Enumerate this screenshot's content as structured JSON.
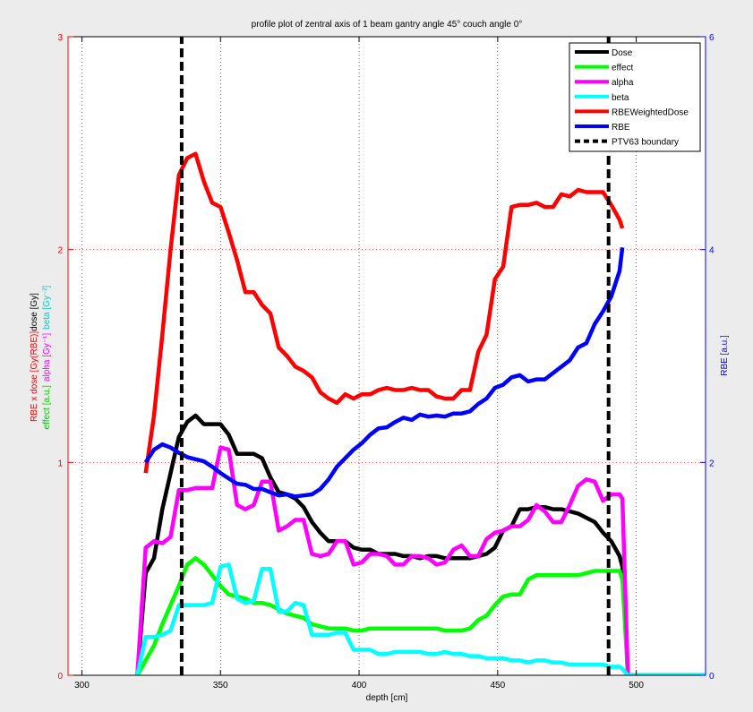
{
  "chart_data": {
    "type": "line",
    "title": "profile plot of zentral axis of 1 beam gantry angle 45° couch angle 0°",
    "xlabel": "depth [cm]",
    "ylabel_left_parts": [
      {
        "text": "RBE x dose [Gy(RBE)]",
        "color": "#ff0000"
      },
      {
        "text": "dose [Gy]",
        "color": "#000000"
      }
    ],
    "ylabel_left2_parts": [
      {
        "text": "effect [a.u.]",
        "color": "#00cc00"
      },
      {
        "text": "alpha [Gy⁻¹]",
        "color": "#ff00ff"
      },
      {
        "text": "beta [Gy⁻²]",
        "color": "#00cccc"
      }
    ],
    "ylabel_right": "RBE [a.u.]",
    "xlim": [
      295,
      525
    ],
    "ylim_left": [
      0,
      3
    ],
    "ylim_right": [
      0,
      6
    ],
    "x_ticks": [
      "300",
      "350",
      "400",
      "450",
      "500"
    ],
    "y_left_ticks": [
      "0",
      "1",
      "2",
      "3"
    ],
    "y_right_ticks": [
      "0",
      "2",
      "4",
      "6"
    ],
    "grid": true,
    "legend_position": "top-right",
    "series": [
      {
        "name": "Dose",
        "color": "#000000",
        "axis": "left",
        "dashed": false,
        "x": [
          320,
          323,
          326,
          329,
          332,
          335,
          338,
          341,
          344,
          347,
          350,
          353,
          356,
          359,
          362,
          365,
          368,
          371,
          374,
          377,
          380,
          383,
          386,
          389,
          392,
          395,
          398,
          401,
          404,
          407,
          410,
          413,
          416,
          419,
          422,
          425,
          428,
          431,
          434,
          437,
          440,
          443,
          446,
          449,
          452,
          455,
          458,
          461,
          464,
          467,
          470,
          473,
          476,
          479,
          482,
          485,
          488,
          491,
          494,
          495,
          497,
          500,
          525
        ],
        "y": [
          0.0,
          0.48,
          0.55,
          0.78,
          0.95,
          1.12,
          1.19,
          1.22,
          1.18,
          1.18,
          1.18,
          1.13,
          1.04,
          1.04,
          1.04,
          1.02,
          0.93,
          0.86,
          0.85,
          0.83,
          0.79,
          0.72,
          0.67,
          0.63,
          0.63,
          0.63,
          0.6,
          0.59,
          0.59,
          0.57,
          0.57,
          0.57,
          0.56,
          0.56,
          0.55,
          0.56,
          0.56,
          0.55,
          0.55,
          0.55,
          0.55,
          0.56,
          0.57,
          0.6,
          0.68,
          0.7,
          0.78,
          0.78,
          0.79,
          0.79,
          0.78,
          0.78,
          0.77,
          0.76,
          0.74,
          0.72,
          0.67,
          0.63,
          0.56,
          0.51,
          0.0,
          0.0,
          0.0
        ]
      },
      {
        "name": "effect",
        "color": "#00ff00",
        "axis": "left",
        "dashed": false,
        "x": [
          320,
          323,
          326,
          329,
          332,
          335,
          338,
          341,
          344,
          347,
          350,
          353,
          356,
          359,
          362,
          365,
          368,
          371,
          374,
          377,
          380,
          383,
          386,
          389,
          392,
          395,
          398,
          401,
          404,
          407,
          410,
          413,
          416,
          419,
          422,
          425,
          428,
          431,
          434,
          437,
          440,
          443,
          446,
          449,
          452,
          455,
          458,
          461,
          464,
          467,
          470,
          473,
          476,
          479,
          482,
          485,
          488,
          491,
          494,
          495,
          497,
          500,
          525
        ],
        "y": [
          0.0,
          0.07,
          0.14,
          0.24,
          0.33,
          0.42,
          0.52,
          0.55,
          0.52,
          0.47,
          0.42,
          0.38,
          0.37,
          0.36,
          0.34,
          0.34,
          0.33,
          0.31,
          0.29,
          0.28,
          0.27,
          0.24,
          0.23,
          0.22,
          0.22,
          0.22,
          0.21,
          0.21,
          0.22,
          0.22,
          0.22,
          0.22,
          0.22,
          0.22,
          0.22,
          0.22,
          0.22,
          0.21,
          0.21,
          0.21,
          0.22,
          0.26,
          0.28,
          0.33,
          0.37,
          0.38,
          0.38,
          0.45,
          0.47,
          0.47,
          0.47,
          0.47,
          0.47,
          0.47,
          0.48,
          0.49,
          0.49,
          0.49,
          0.49,
          0.45,
          0.0,
          0.0,
          0.0
        ]
      },
      {
        "name": "alpha",
        "color": "#ff00ff",
        "axis": "left",
        "dashed": false,
        "x": [
          320,
          323,
          326,
          329,
          332,
          335,
          338,
          341,
          344,
          347,
          350,
          353,
          356,
          359,
          362,
          365,
          368,
          371,
          374,
          377,
          380,
          383,
          386,
          389,
          392,
          395,
          398,
          401,
          404,
          407,
          410,
          413,
          416,
          419,
          422,
          425,
          428,
          431,
          434,
          437,
          440,
          443,
          446,
          449,
          452,
          455,
          458,
          461,
          464,
          467,
          470,
          473,
          476,
          479,
          482,
          485,
          488,
          491,
          494,
          495,
          497,
          500,
          525
        ],
        "y": [
          0.0,
          0.6,
          0.63,
          0.62,
          0.65,
          0.87,
          0.87,
          0.88,
          0.88,
          0.88,
          1.07,
          1.06,
          0.8,
          0.78,
          0.8,
          0.91,
          0.91,
          0.68,
          0.7,
          0.73,
          0.73,
          0.57,
          0.56,
          0.57,
          0.63,
          0.63,
          0.52,
          0.53,
          0.57,
          0.57,
          0.56,
          0.52,
          0.52,
          0.56,
          0.56,
          0.55,
          0.52,
          0.53,
          0.59,
          0.61,
          0.56,
          0.56,
          0.64,
          0.67,
          0.68,
          0.7,
          0.7,
          0.73,
          0.8,
          0.77,
          0.72,
          0.72,
          0.8,
          0.89,
          0.92,
          0.91,
          0.82,
          0.85,
          0.85,
          0.83,
          0.0,
          0.0,
          0.0
        ]
      },
      {
        "name": "beta",
        "color": "#00ffff",
        "axis": "left",
        "dashed": false,
        "x": [
          320,
          323,
          326,
          329,
          332,
          335,
          338,
          341,
          344,
          347,
          350,
          353,
          356,
          359,
          362,
          365,
          368,
          371,
          374,
          377,
          380,
          383,
          386,
          389,
          392,
          395,
          398,
          401,
          404,
          407,
          410,
          413,
          416,
          419,
          422,
          425,
          428,
          431,
          434,
          437,
          440,
          443,
          446,
          449,
          452,
          455,
          458,
          461,
          464,
          467,
          470,
          473,
          476,
          479,
          482,
          485,
          488,
          491,
          494,
          495,
          497,
          500,
          525
        ],
        "y": [
          0.0,
          0.18,
          0.18,
          0.19,
          0.21,
          0.33,
          0.33,
          0.33,
          0.33,
          0.34,
          0.51,
          0.52,
          0.36,
          0.34,
          0.35,
          0.5,
          0.5,
          0.3,
          0.3,
          0.34,
          0.33,
          0.19,
          0.19,
          0.19,
          0.2,
          0.2,
          0.12,
          0.12,
          0.12,
          0.1,
          0.1,
          0.11,
          0.11,
          0.11,
          0.11,
          0.1,
          0.1,
          0.11,
          0.1,
          0.1,
          0.09,
          0.09,
          0.08,
          0.08,
          0.08,
          0.07,
          0.07,
          0.06,
          0.07,
          0.07,
          0.06,
          0.06,
          0.05,
          0.05,
          0.05,
          0.05,
          0.05,
          0.04,
          0.04,
          0.03,
          0.0,
          0.0,
          0.0
        ]
      },
      {
        "name": "RBEWeightedDose",
        "color": "#ff0000",
        "axis": "left",
        "dashed": false,
        "x": [
          323,
          326,
          329,
          332,
          335,
          338,
          341,
          344,
          347,
          350,
          353,
          356,
          359,
          362,
          365,
          368,
          371,
          374,
          377,
          380,
          383,
          386,
          389,
          392,
          395,
          398,
          401,
          404,
          407,
          410,
          413,
          416,
          419,
          422,
          425,
          428,
          431,
          434,
          437,
          440,
          443,
          446,
          449,
          452,
          455,
          458,
          461,
          464,
          467,
          470,
          473,
          476,
          479,
          482,
          485,
          488,
          491,
          494,
          495
        ],
        "y": [
          0.95,
          1.22,
          1.6,
          2.0,
          2.35,
          2.43,
          2.45,
          2.32,
          2.22,
          2.2,
          2.08,
          1.95,
          1.8,
          1.8,
          1.74,
          1.7,
          1.54,
          1.5,
          1.45,
          1.43,
          1.4,
          1.33,
          1.3,
          1.28,
          1.32,
          1.3,
          1.32,
          1.32,
          1.34,
          1.35,
          1.34,
          1.34,
          1.35,
          1.34,
          1.34,
          1.31,
          1.3,
          1.3,
          1.34,
          1.34,
          1.52,
          1.6,
          1.86,
          1.92,
          2.2,
          2.21,
          2.21,
          2.22,
          2.2,
          2.2,
          2.26,
          2.25,
          2.28,
          2.27,
          2.27,
          2.27,
          2.21,
          2.14,
          2.1
        ]
      },
      {
        "name": "RBE",
        "color": "#0000ff",
        "axis": "right",
        "dashed": false,
        "x": [
          323,
          326,
          329,
          332,
          335,
          338,
          341,
          344,
          347,
          350,
          353,
          356,
          359,
          362,
          365,
          368,
          371,
          374,
          377,
          380,
          383,
          386,
          389,
          392,
          395,
          398,
          401,
          404,
          407,
          410,
          413,
          416,
          419,
          422,
          425,
          428,
          431,
          434,
          437,
          440,
          443,
          446,
          449,
          452,
          455,
          458,
          461,
          464,
          467,
          470,
          473,
          476,
          479,
          482,
          485,
          488,
          491,
          494,
          495
        ],
        "y": [
          2.0,
          2.12,
          2.17,
          2.14,
          2.09,
          2.05,
          2.03,
          2.01,
          1.96,
          1.9,
          1.85,
          1.8,
          1.79,
          1.75,
          1.75,
          1.72,
          1.69,
          1.7,
          1.68,
          1.69,
          1.7,
          1.75,
          1.84,
          1.96,
          2.04,
          2.12,
          2.18,
          2.26,
          2.32,
          2.33,
          2.38,
          2.42,
          2.4,
          2.45,
          2.43,
          2.44,
          2.43,
          2.46,
          2.46,
          2.48,
          2.55,
          2.6,
          2.7,
          2.73,
          2.8,
          2.82,
          2.76,
          2.78,
          2.78,
          2.84,
          2.9,
          2.96,
          3.08,
          3.12,
          3.3,
          3.42,
          3.56,
          3.8,
          4.02
        ]
      },
      {
        "name": "PTV63 boundary",
        "color": "#000000",
        "axis": "left",
        "dashed": true,
        "x": [
          336,
          336
        ],
        "y": [
          0,
          3
        ]
      },
      {
        "name": "",
        "color": "#000000",
        "axis": "left",
        "dashed": true,
        "x": [
          490,
          490
        ],
        "y": [
          0,
          3
        ]
      }
    ]
  }
}
